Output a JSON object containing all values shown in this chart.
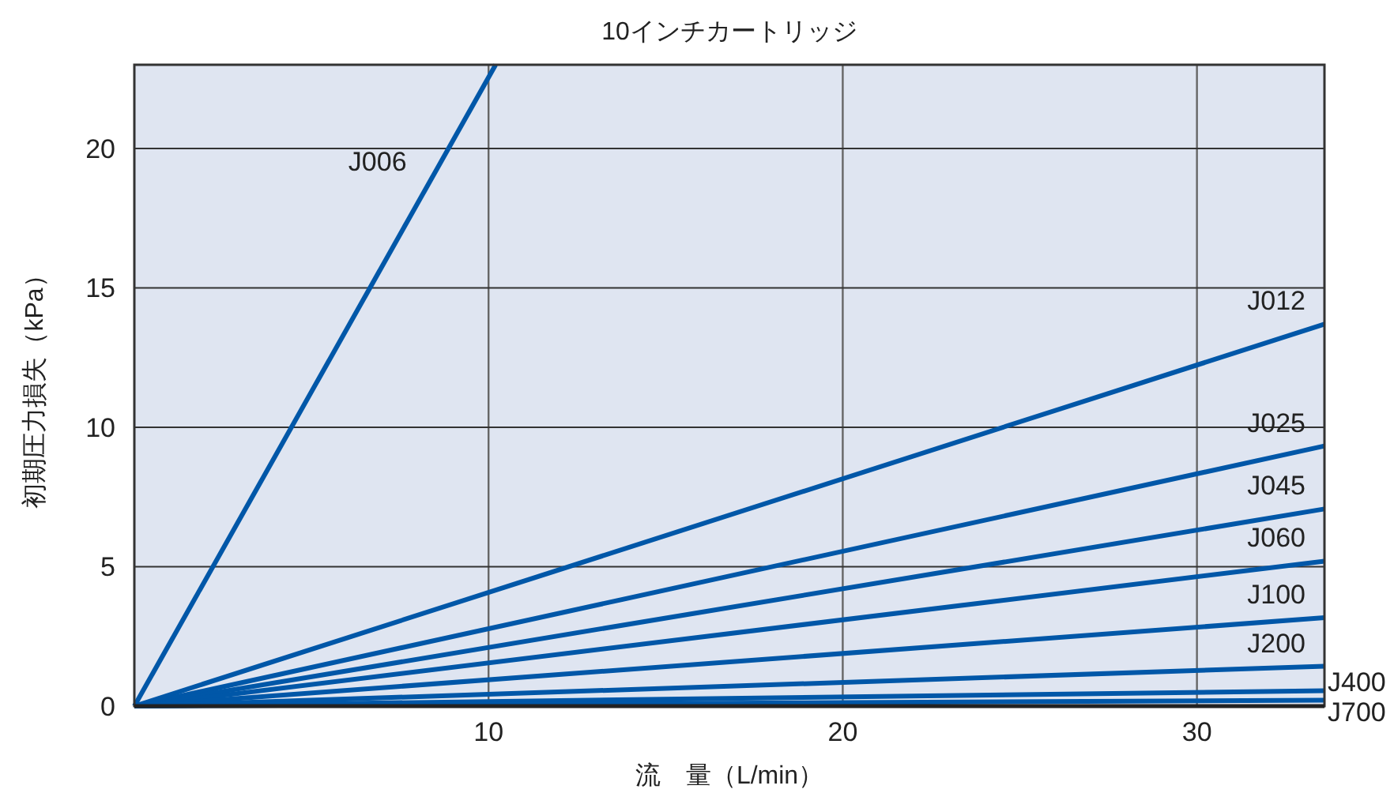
{
  "chart_data": {
    "type": "line",
    "title": "10インチカートリッジ",
    "xlabel": "流　量（L/min）",
    "ylabel": "初期圧力損失（kPa）",
    "xlim": [
      0,
      33.6
    ],
    "ylim": [
      0,
      23
    ],
    "xticks": [
      10,
      20,
      30
    ],
    "yticks": [
      0,
      5,
      10,
      15,
      20
    ],
    "grid": true,
    "series": [
      {
        "name": "J006",
        "color": "#0057a8",
        "x": [
          0,
          10.2
        ],
        "values": [
          0,
          23
        ]
      },
      {
        "name": "J012",
        "color": "#0057a8",
        "x": [
          0,
          33.6
        ],
        "values": [
          0,
          13.7
        ]
      },
      {
        "name": "J025",
        "color": "#0057a8",
        "x": [
          0,
          33.6
        ],
        "values": [
          0,
          9.33
        ]
      },
      {
        "name": "J045",
        "color": "#0057a8",
        "x": [
          0,
          33.6
        ],
        "values": [
          0,
          7.07
        ]
      },
      {
        "name": "J060",
        "color": "#0057a8",
        "x": [
          0,
          33.6
        ],
        "values": [
          0,
          5.2
        ]
      },
      {
        "name": "J100",
        "color": "#0057a8",
        "x": [
          0,
          33.6
        ],
        "values": [
          0,
          3.17
        ]
      },
      {
        "name": "J200",
        "color": "#0057a8",
        "x": [
          0,
          33.6
        ],
        "values": [
          0,
          1.43
        ]
      },
      {
        "name": "J400",
        "color": "#0057a8",
        "x": [
          0,
          33.6
        ],
        "values": [
          0,
          0.55
        ]
      },
      {
        "name": "J700",
        "color": "#0057a8",
        "x": [
          0,
          33.6
        ],
        "values": [
          0,
          0.21
        ]
      }
    ]
  }
}
